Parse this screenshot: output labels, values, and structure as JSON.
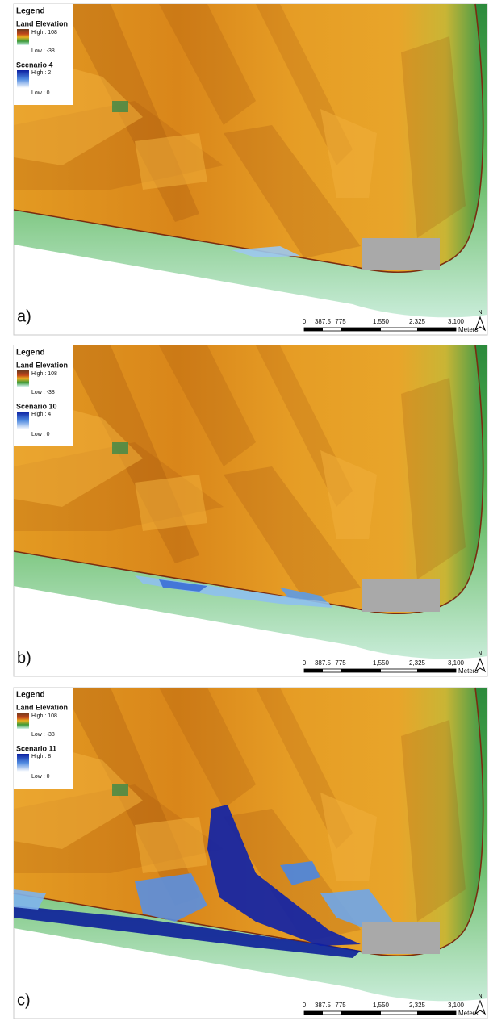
{
  "panels": [
    {
      "label": "a)",
      "legend": {
        "title": "Legend",
        "elevation": {
          "name": "Land Elevation",
          "high": "High : 108",
          "low": "Low : -38"
        },
        "scenario": {
          "name": "Scenario 4",
          "high": "High : 2",
          "low": "Low : 0"
        }
      }
    },
    {
      "label": "b)",
      "legend": {
        "title": "Legend",
        "elevation": {
          "name": "Land Elevation",
          "high": "High : 108",
          "low": "Low : -38"
        },
        "scenario": {
          "name": "Scenario 10",
          "high": "High : 4",
          "low": "Low : 0"
        }
      }
    },
    {
      "label": "c)",
      "legend": {
        "title": "Legend",
        "elevation": {
          "name": "Land Elevation",
          "high": "High : 108",
          "low": "Low : -38"
        },
        "scenario": {
          "name": "Scenario 11",
          "high": "High : 8",
          "low": "Low : 0"
        }
      }
    }
  ],
  "scale_bar": {
    "ticks": [
      "0",
      "387.5",
      "775",
      "1,550",
      "2,325",
      "3,100"
    ],
    "unit": "Meters"
  },
  "north_label": "N"
}
